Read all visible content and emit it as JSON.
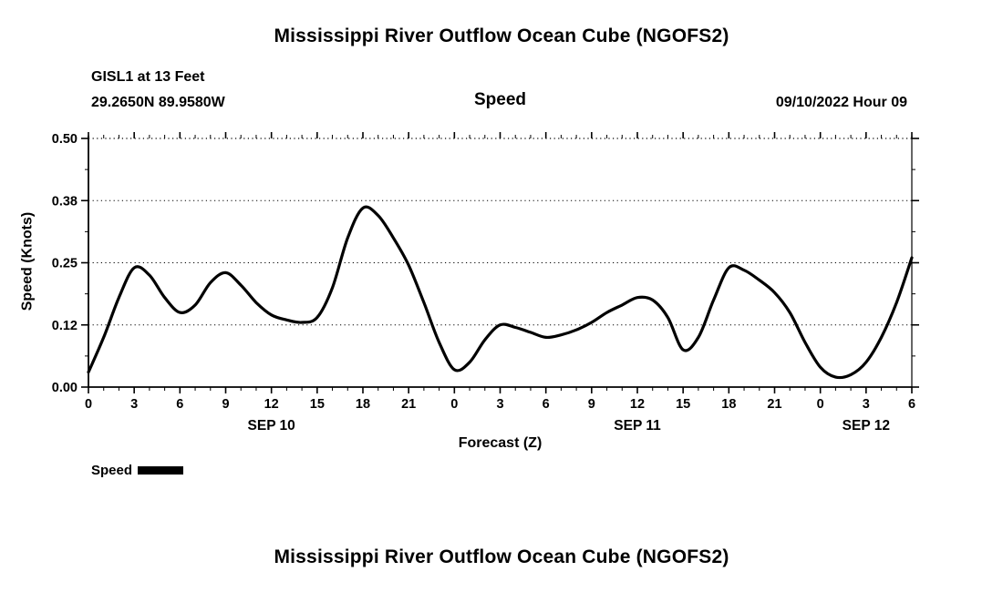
{
  "page": {
    "title_top": "Mississippi River Outflow Ocean Cube (NGOFS2)",
    "title_bottom": "Mississippi River Outflow Ocean Cube (NGOFS2)"
  },
  "header": {
    "station": "GISL1 at 13 Feet",
    "coordinates": "29.2650N  89.9580W",
    "center_label": "Speed",
    "datetime": "09/10/2022 Hour 09"
  },
  "chart_data": {
    "type": "line",
    "title": "Speed",
    "xlabel": "Forecast (Z)",
    "ylabel": "Speed (Knots)",
    "ylim": [
      0,
      0.5
    ],
    "xlim": [
      0,
      54
    ],
    "grid": "horizontal-dotted",
    "ytick_values": [
      0,
      0.125,
      0.25,
      0.375,
      0.5
    ],
    "ytick_labels": [
      "0.00",
      "0.12",
      "0.25",
      "0.38",
      "0.50"
    ],
    "xtick_step_hours": 3,
    "xtick_labels": [
      "0",
      "3",
      "6",
      "9",
      "12",
      "15",
      "18",
      "21",
      "0",
      "3",
      "6",
      "9",
      "12",
      "15",
      "18",
      "21",
      "0",
      "3",
      "6"
    ],
    "date_labels": [
      {
        "label": "SEP 10",
        "hour": 12
      },
      {
        "label": "SEP 11",
        "hour": 36
      },
      {
        "label": "SEP 12",
        "hour": 51
      }
    ],
    "legend": {
      "label": "Speed",
      "position": "bottom-left"
    },
    "series": [
      {
        "name": "Speed",
        "color": "#000000",
        "x": [
          0,
          1,
          2,
          3,
          4,
          5,
          6,
          7,
          8,
          9,
          10,
          11,
          12,
          13,
          14,
          15,
          16,
          17,
          18,
          19,
          20,
          21,
          22,
          23,
          24,
          25,
          26,
          27,
          28,
          29,
          30,
          31,
          32,
          33,
          34,
          35,
          36,
          37,
          38,
          39,
          40,
          41,
          42,
          43,
          44,
          45,
          46,
          47,
          48,
          49,
          50,
          51,
          52,
          53,
          54
        ],
        "values": [
          0.03,
          0.1,
          0.18,
          0.24,
          0.225,
          0.18,
          0.15,
          0.165,
          0.21,
          0.23,
          0.205,
          0.17,
          0.145,
          0.135,
          0.13,
          0.14,
          0.2,
          0.3,
          0.36,
          0.345,
          0.3,
          0.245,
          0.17,
          0.09,
          0.035,
          0.05,
          0.095,
          0.125,
          0.12,
          0.11,
          0.1,
          0.105,
          0.115,
          0.13,
          0.15,
          0.165,
          0.18,
          0.175,
          0.14,
          0.075,
          0.1,
          0.175,
          0.24,
          0.235,
          0.215,
          0.19,
          0.15,
          0.09,
          0.04,
          0.02,
          0.025,
          0.05,
          0.1,
          0.17,
          0.26
        ]
      }
    ]
  }
}
